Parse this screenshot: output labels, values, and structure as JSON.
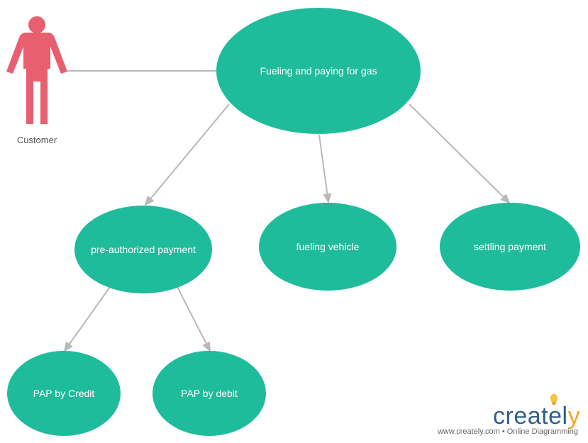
{
  "actor": {
    "label": "Customer",
    "color": "#e85f6f"
  },
  "use_cases": {
    "main": "Fueling and paying for gas",
    "pre_authorized": "pre-authorized payment",
    "fueling": "fueling vehicle",
    "settling": "settling payment",
    "pap_credit": "PAP by Credit",
    "pap_debit": "PAP by debit"
  },
  "colors": {
    "node_fill": "#1fbc9c",
    "edge": "#b8b8b8",
    "brand_blue": "#2f5f8a",
    "brand_bulb": "#f5c242"
  },
  "watermark": {
    "word_main": "createl",
    "word_end": "y",
    "tagline": "www.creately.com • Online Diagramming"
  }
}
